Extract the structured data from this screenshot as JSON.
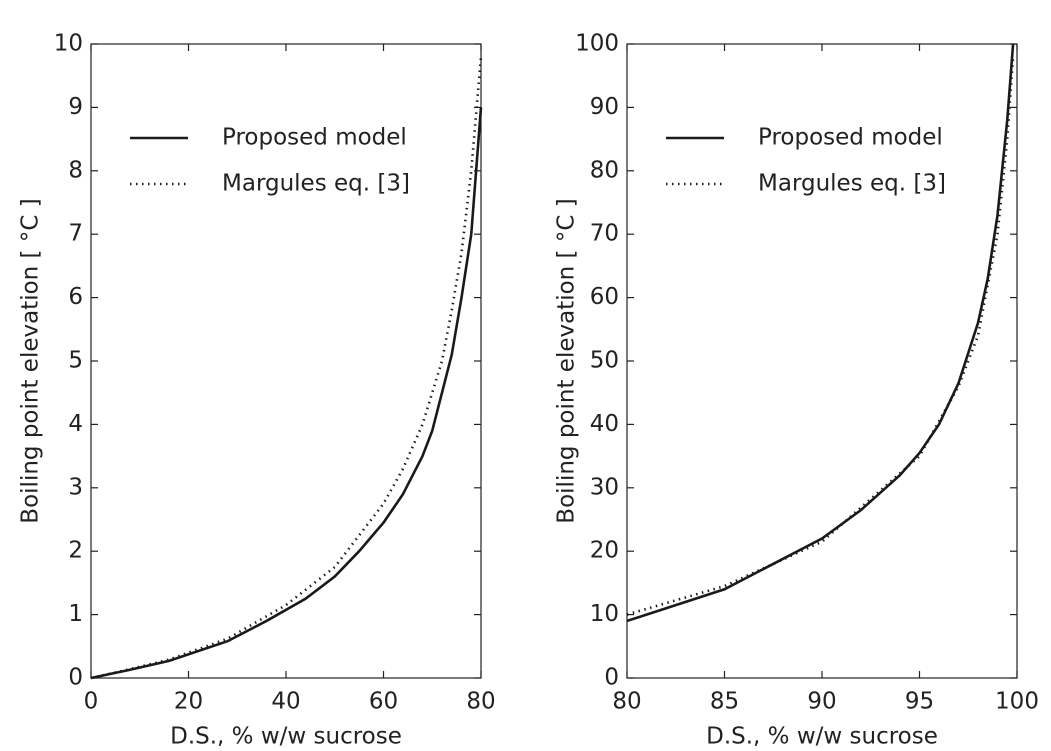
{
  "chart_data": [
    {
      "type": "line",
      "x_label": "D.S.,  % w/w sucrose",
      "y_label": "Boiling point elevation   [ °C ]",
      "xlim": [
        0,
        80
      ],
      "xticks": [
        0,
        20,
        40,
        60,
        80
      ],
      "ylim": [
        0,
        10
      ],
      "yticks": [
        0,
        1,
        2,
        3,
        4,
        5,
        6,
        7,
        8,
        9,
        10
      ],
      "legend": "upper left",
      "series": [
        {
          "name": "Proposed model",
          "color": "#1a1a1a",
          "linestyle": "solid",
          "x": [
            0,
            8,
            16,
            28,
            36,
            44,
            50,
            55,
            60,
            64,
            68,
            70,
            72,
            74,
            76,
            78,
            80
          ],
          "values": [
            0,
            0.13,
            0.27,
            0.58,
            0.9,
            1.25,
            1.6,
            2.0,
            2.45,
            2.9,
            3.5,
            3.9,
            4.5,
            5.1,
            6.0,
            7.0,
            9.0
          ]
        },
        {
          "name": "Margules eq. [3]",
          "color": "#1a1a1a",
          "linestyle": "dotted",
          "x": [
            0,
            8,
            16,
            28,
            40,
            50,
            60,
            64,
            68,
            72,
            74,
            76,
            78,
            80
          ],
          "values": [
            0,
            0.14,
            0.29,
            0.62,
            1.15,
            1.75,
            2.75,
            3.3,
            4.0,
            5.0,
            5.8,
            6.7,
            8.0,
            9.8
          ]
        }
      ]
    },
    {
      "type": "line",
      "x_label": "D.S.,  % w/w sucrose",
      "y_label": "Boiling point elevation   [ °C ]",
      "xlim": [
        80,
        100
      ],
      "xticks": [
        80,
        85,
        90,
        95,
        100
      ],
      "ylim": [
        0,
        100
      ],
      "yticks": [
        0,
        10,
        20,
        30,
        40,
        50,
        60,
        70,
        80,
        90,
        100
      ],
      "legend": "upper left",
      "series": [
        {
          "name": "Proposed model",
          "color": "#1a1a1a",
          "linestyle": "solid",
          "x": [
            80,
            85,
            90,
            92,
            94,
            95,
            96,
            97,
            98,
            98.5,
            99,
            99.5,
            99.8
          ],
          "values": [
            9,
            14,
            22,
            26.5,
            32,
            35.5,
            40,
            46.5,
            56,
            63,
            73,
            88,
            100
          ]
        },
        {
          "name": "Margules eq. [3]",
          "color": "#1a1a1a",
          "linestyle": "dotted",
          "x": [
            80,
            85,
            90,
            95,
            97,
            98,
            99,
            99.5,
            99.8
          ],
          "values": [
            10,
            14.5,
            21.5,
            35,
            46,
            54,
            70,
            85,
            98
          ]
        }
      ]
    }
  ]
}
